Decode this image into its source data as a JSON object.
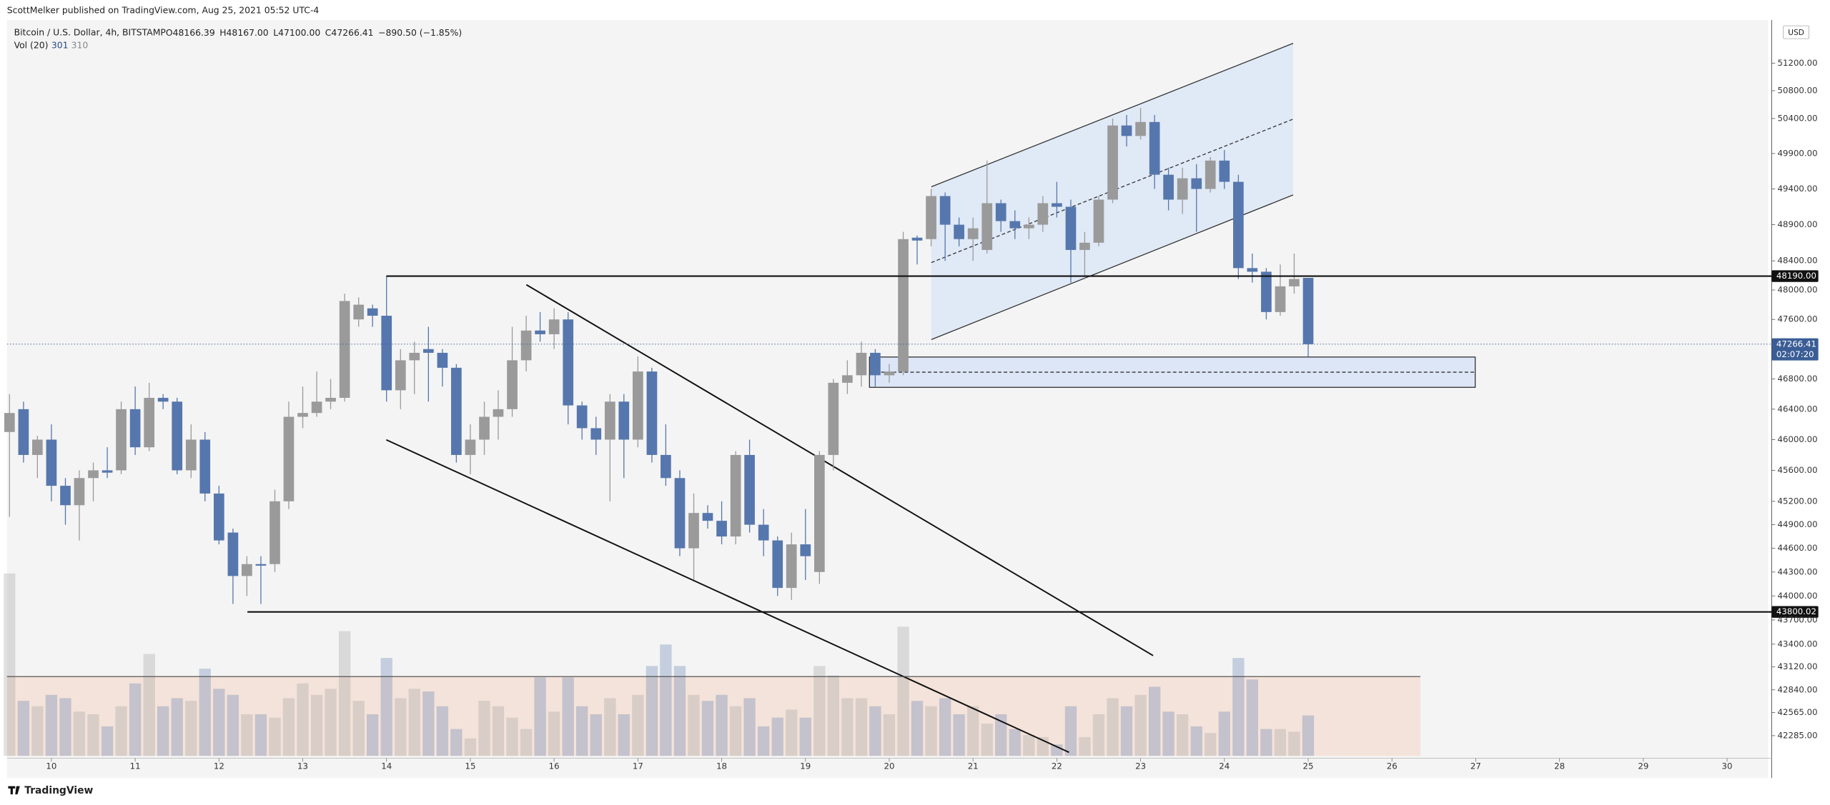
{
  "header": {
    "publisher": "ScottMelker published on TradingView.com, Aug 25, 2021 05:52 UTC-4",
    "symbol": "Bitcoin / U.S. Dollar, 4h, BITSTAMP",
    "ohlc": [
      "O48166.39",
      "H48167.00",
      "L47100.00",
      "C47266.41",
      "−890.50 (−1.85%)"
    ],
    "volume_label": "Vol (20)",
    "volume_values": [
      "301",
      "310"
    ],
    "currency": "USD",
    "footer": "TradingView"
  },
  "chart_data": {
    "type": "candlestick",
    "log": true,
    "grid": false,
    "up_color": "#9a9a9a",
    "down_color": "#5677ad",
    "x": [
      9.5,
      9.667,
      9.833,
      10,
      10.167,
      10.333,
      10.5,
      10.667,
      10.833,
      11,
      11.167,
      11.333,
      11.5,
      11.667,
      11.833,
      12,
      12.167,
      12.333,
      12.5,
      12.667,
      12.833,
      13,
      13.167,
      13.333,
      13.5,
      13.667,
      13.833,
      14,
      14.167,
      14.333,
      14.5,
      14.667,
      14.833,
      15,
      15.167,
      15.333,
      15.5,
      15.667,
      15.833,
      16,
      16.167,
      16.333,
      16.5,
      16.667,
      16.833,
      17,
      17.167,
      17.333,
      17.5,
      17.667,
      17.833,
      18,
      18.167,
      18.333,
      18.5,
      18.667,
      18.833,
      19,
      19.167,
      19.333,
      19.5,
      19.667,
      19.833,
      20,
      20.167,
      20.333,
      20.5,
      20.667,
      20.833,
      21,
      21.167,
      21.333,
      21.5,
      21.667,
      21.833,
      22,
      22.167,
      22.333,
      22.5,
      22.667,
      22.833,
      23,
      23.167,
      23.333,
      23.5,
      23.667,
      23.833,
      24,
      24.167,
      24.333,
      24.5,
      24.667,
      24.833,
      25
    ],
    "open": [
      46100,
      46400,
      45800,
      46000,
      45400,
      45150,
      45500,
      45600,
      45600,
      46400,
      45900,
      46550,
      46500,
      45600,
      46000,
      45300,
      44800,
      44250,
      44400,
      44400,
      45200,
      46300,
      46350,
      46500,
      46550,
      47600,
      47750,
      47650,
      46650,
      47050,
      47200,
      47150,
      46950,
      45800,
      46000,
      46300,
      46400,
      47050,
      47450,
      47400,
      47600,
      46450,
      46150,
      46000,
      46500,
      46000,
      46900,
      45800,
      45500,
      44600,
      45050,
      44950,
      44750,
      45800,
      44900,
      44700,
      44100,
      44650,
      44300,
      45800,
      46750,
      46850,
      47150,
      46850,
      46900,
      48720,
      48700,
      49300,
      48900,
      48700,
      48550,
      49200,
      48950,
      48850,
      48900,
      49200,
      49150,
      48550,
      48650,
      49250,
      50300,
      50150,
      50350,
      49600,
      49250,
      49550,
      49400,
      49800,
      49500,
      48300,
      48250,
      47700,
      48050,
      48166.39
    ],
    "high": [
      46600,
      46500,
      46050,
      46200,
      45500,
      45600,
      45700,
      45900,
      46500,
      46700,
      46750,
      46600,
      46550,
      46200,
      46100,
      45400,
      44850,
      44500,
      44500,
      45350,
      46500,
      46700,
      46900,
      46800,
      47950,
      47900,
      47800,
      48190,
      47200,
      47300,
      47500,
      47200,
      47000,
      46200,
      46500,
      46650,
      47500,
      47650,
      47700,
      47750,
      47700,
      46500,
      46300,
      46600,
      46600,
      47100,
      46950,
      46200,
      45600,
      45300,
      45150,
      45200,
      45850,
      46000,
      45100,
      44750,
      44800,
      45100,
      45850,
      46800,
      47050,
      47300,
      47200,
      47000,
      48800,
      48750,
      49400,
      49350,
      49000,
      49000,
      49800,
      49250,
      49100,
      49000,
      49300,
      49500,
      49250,
      48800,
      49300,
      50400,
      50450,
      50550,
      50450,
      49700,
      49700,
      49750,
      49850,
      49950,
      49600,
      48500,
      48300,
      48350,
      48500,
      48167
    ],
    "low": [
      45000,
      45700,
      45500,
      45200,
      44900,
      44700,
      45200,
      45500,
      45550,
      45800,
      45850,
      46400,
      45550,
      45500,
      45200,
      44650,
      43900,
      44000,
      43900,
      44300,
      45100,
      46150,
      46300,
      46400,
      46500,
      47500,
      47500,
      46500,
      46400,
      46600,
      46500,
      46700,
      45700,
      45550,
      45800,
      46000,
      46300,
      46900,
      47300,
      47200,
      46200,
      46000,
      45800,
      45200,
      45500,
      45900,
      45700,
      45400,
      44500,
      44200,
      44850,
      44650,
      44650,
      44800,
      44500,
      44000,
      43950,
      44200,
      44150,
      45600,
      46600,
      46700,
      46700,
      46750,
      46850,
      48350,
      48600,
      48400,
      48600,
      48400,
      48500,
      48800,
      48700,
      48700,
      48800,
      49000,
      48100,
      48150,
      48600,
      49200,
      50000,
      50100,
      49400,
      49100,
      49050,
      48800,
      49350,
      49400,
      48150,
      48100,
      47600,
      47650,
      47950,
      47100
    ],
    "close": [
      46350,
      45800,
      46000,
      45400,
      45150,
      45500,
      45600,
      45570,
      46400,
      45900,
      46550,
      46500,
      45600,
      46000,
      45300,
      44700,
      44250,
      44400,
      44380,
      45200,
      46300,
      46350,
      46500,
      46550,
      47850,
      47800,
      47650,
      46650,
      47050,
      47150,
      47150,
      46950,
      45800,
      46000,
      46300,
      46400,
      47050,
      47450,
      47400,
      47600,
      46450,
      46150,
      46000,
      46500,
      46000,
      46900,
      45800,
      45500,
      44600,
      45050,
      44950,
      44750,
      45800,
      44900,
      44700,
      44100,
      44650,
      44500,
      45800,
      46750,
      46850,
      47150,
      46850,
      46900,
      48700,
      48680,
      49300,
      48900,
      48700,
      48850,
      49200,
      48950,
      48850,
      48900,
      49200,
      49150,
      48550,
      48650,
      49250,
      50300,
      50150,
      50350,
      49600,
      49250,
      49550,
      49400,
      49800,
      49500,
      48300,
      48250,
      47700,
      48050,
      48150,
      47266.41
    ],
    "volume": [
      1360,
      410,
      370,
      455,
      430,
      330,
      310,
      220,
      370,
      540,
      760,
      370,
      430,
      410,
      650,
      500,
      455,
      310,
      310,
      285,
      430,
      540,
      455,
      500,
      930,
      410,
      310,
      730,
      430,
      500,
      480,
      370,
      200,
      130,
      410,
      370,
      285,
      200,
      585,
      330,
      585,
      370,
      310,
      430,
      310,
      455,
      670,
      830,
      670,
      455,
      410,
      455,
      370,
      430,
      220,
      285,
      345,
      285,
      670,
      600,
      430,
      430,
      370,
      310,
      963,
      410,
      370,
      430,
      310,
      370,
      240,
      310,
      200,
      155,
      140,
      85,
      370,
      140,
      310,
      430,
      370,
      455,
      515,
      330,
      310,
      220,
      170,
      330,
      730,
      570,
      200,
      200,
      180,
      301
    ],
    "vlim": [
      0,
      1400
    ],
    "xlim": [
      9.47,
      30.49
    ],
    "xticks": [
      10,
      11,
      12,
      13,
      14,
      15,
      16,
      17,
      18,
      19,
      20,
      21,
      22,
      23,
      24,
      25,
      26,
      27,
      28,
      29,
      30
    ],
    "ylim": [
      42015,
      51832
    ],
    "yticks": [
      {
        "value": 51200,
        "label": "51200.00"
      },
      {
        "value": 50800,
        "label": "50800.00"
      },
      {
        "value": 50400,
        "label": "50400.00"
      },
      {
        "value": 49900,
        "label": "49900.00"
      },
      {
        "value": 49400,
        "label": "49400.00"
      },
      {
        "value": 48900,
        "label": "48900.00"
      },
      {
        "value": 48400,
        "label": "48400.00"
      },
      {
        "value": 48000,
        "label": "48000.00"
      },
      {
        "value": 47600,
        "label": "47600.00"
      },
      {
        "value": 46800,
        "label": "46800.00"
      },
      {
        "value": 46400,
        "label": "46400.00"
      },
      {
        "value": 46000,
        "label": "46000.00"
      },
      {
        "value": 45600,
        "label": "45600.00"
      },
      {
        "value": 45200,
        "label": "45200.00"
      },
      {
        "value": 44900,
        "label": "44900.00"
      },
      {
        "value": 44600,
        "label": "44600.00"
      },
      {
        "value": 44300,
        "label": "44300.00"
      },
      {
        "value": 44000,
        "label": "44000.00"
      },
      {
        "value": 43700,
        "label": "43700.00"
      },
      {
        "value": 43400,
        "label": "43400.00"
      },
      {
        "value": 43120,
        "label": "43120.00"
      },
      {
        "value": 42840,
        "label": "42840.00"
      },
      {
        "value": 42565,
        "label": "42565.00"
      },
      {
        "value": 42285,
        "label": "42285.00"
      }
    ],
    "levels": [
      {
        "value": 48190,
        "label": "48190.00"
      },
      {
        "value": 43800.02,
        "label": "43800.02"
      }
    ],
    "last": {
      "value": 47266.41,
      "label": "47266.41",
      "countdown": "02:07:20",
      "color": "#3b5d96"
    }
  }
}
